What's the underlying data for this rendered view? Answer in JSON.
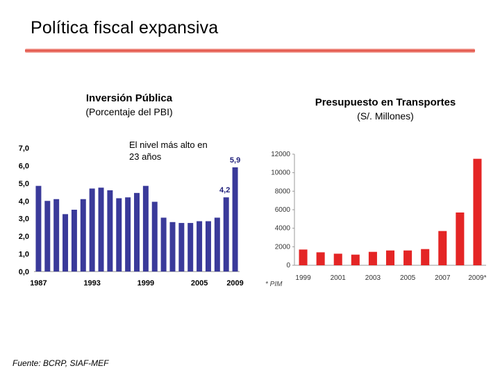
{
  "title": "Política fiscal expansiva",
  "annotation": "El nivel más alto en 23 años",
  "footnote": "Fuente: BCRP, SIAF-MEF",
  "right_footnote_marker": "* PIM",
  "colors": {
    "left_bar": "#3a3a9a",
    "right_bar": "#e42525",
    "rule": "#e0483c"
  },
  "chart_data": [
    {
      "type": "bar",
      "title": "Inversión Pública",
      "subtitle": "(Porcentaje del PBI)",
      "ylim": [
        0,
        7
      ],
      "yticks": [
        "0,0",
        "1,0",
        "2,0",
        "3,0",
        "4,0",
        "5,0",
        "6,0",
        "7,0"
      ],
      "xtick_labels": [
        "1987",
        "1993",
        "1999",
        "2005",
        "2009"
      ],
      "categories": [
        "1987",
        "1988",
        "1989",
        "1990",
        "1991",
        "1992",
        "1993",
        "1994",
        "1995",
        "1996",
        "1997",
        "1998",
        "1999",
        "2000",
        "2001",
        "2002",
        "2003",
        "2004",
        "2005",
        "2006",
        "2007",
        "2008",
        "2009"
      ],
      "values": [
        4.85,
        4.0,
        4.1,
        3.25,
        3.5,
        4.1,
        4.7,
        4.75,
        4.6,
        4.15,
        4.2,
        4.45,
        4.85,
        3.95,
        3.05,
        2.8,
        2.75,
        2.75,
        2.85,
        2.85,
        3.05,
        4.2,
        5.9
      ],
      "data_labels": [
        {
          "index": 21,
          "text": "4,2"
        },
        {
          "index": 22,
          "text": "5,9"
        }
      ]
    },
    {
      "type": "bar",
      "title": "Presupuesto en Transportes",
      "subtitle": "(S/. Millones)",
      "ylim": [
        0,
        12000
      ],
      "yticks": [
        "0",
        "2000",
        "4000",
        "6000",
        "8000",
        "10000",
        "12000"
      ],
      "xtick_labels": [
        "1999",
        "2001",
        "2003",
        "2005",
        "2007",
        "2009*"
      ],
      "categories": [
        "1999",
        "2000",
        "2001",
        "2002",
        "2003",
        "2004",
        "2005",
        "2006",
        "2007",
        "2008",
        "2009"
      ],
      "values": [
        1700,
        1400,
        1250,
        1150,
        1450,
        1600,
        1600,
        1750,
        3700,
        5700,
        11500
      ]
    }
  ]
}
